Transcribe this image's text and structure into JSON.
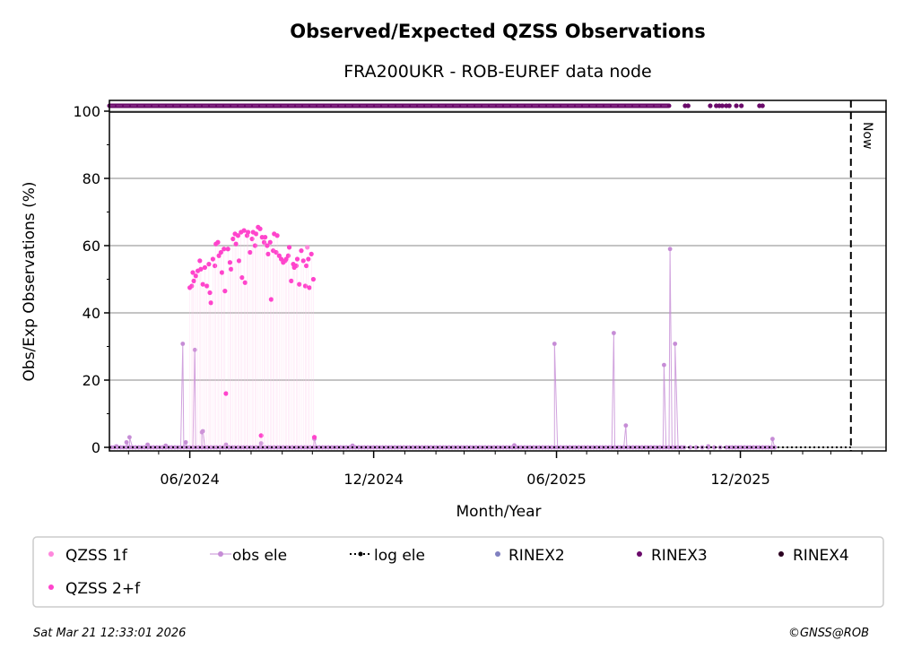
{
  "chart_data": {
    "type": "scatter",
    "title": "Observed/Expected QZSS Observations",
    "subtitle": "FRA200UKR - ROB-EUREF data node",
    "xlabel": "Month/Year",
    "ylabel": "Obs/Exp Observations (%)",
    "xlim": [
      "2024-03-13",
      "2026-04-25"
    ],
    "ylim": [
      -1,
      100
    ],
    "grid": "horizontal",
    "x_ticks": [
      {
        "date": "2024-06-01",
        "label": "06/2024"
      },
      {
        "date": "2024-12-01",
        "label": "12/2024"
      },
      {
        "date": "2025-06-01",
        "label": "06/2025"
      },
      {
        "date": "2025-12-01",
        "label": "12/2025"
      }
    ],
    "y_ticks": [
      0,
      20,
      40,
      60,
      80,
      100
    ],
    "now_marker": {
      "date": "2026-03-21",
      "label": "Now"
    },
    "rinex3_availability": {
      "continuous_from": "2024-03-13",
      "continuous_to": "2025-09-21",
      "extra_dates": [
        "2025-10-07",
        "2025-10-10",
        "2025-11-01",
        "2025-11-07",
        "2025-11-10",
        "2025-11-13",
        "2025-11-17",
        "2025-11-20",
        "2025-11-27",
        "2025-12-02",
        "2025-12-20",
        "2025-12-23"
      ]
    },
    "series": [
      {
        "name": "QZSS 2+f",
        "color": "#ff44cc",
        "points": [
          [
            "2024-06-01",
            47.5
          ],
          [
            "2024-06-03",
            48
          ],
          [
            "2024-06-04",
            52
          ],
          [
            "2024-06-05",
            49.5
          ],
          [
            "2024-06-07",
            51
          ],
          [
            "2024-06-09",
            52.5
          ],
          [
            "2024-06-11",
            55.5
          ],
          [
            "2024-06-12",
            53
          ],
          [
            "2024-06-14",
            48.5
          ],
          [
            "2024-06-16",
            53.5
          ],
          [
            "2024-06-18",
            48
          ],
          [
            "2024-06-20",
            54.5
          ],
          [
            "2024-06-21",
            46
          ],
          [
            "2024-06-22",
            43
          ],
          [
            "2024-06-24",
            56
          ],
          [
            "2024-06-26",
            54
          ],
          [
            "2024-06-27",
            60.5
          ],
          [
            "2024-06-29",
            61
          ],
          [
            "2024-06-30",
            57
          ],
          [
            "2024-07-02",
            58
          ],
          [
            "2024-07-03",
            52
          ],
          [
            "2024-07-05",
            59
          ],
          [
            "2024-07-06",
            46.5
          ],
          [
            "2024-07-07",
            16
          ],
          [
            "2024-07-09",
            59
          ],
          [
            "2024-07-11",
            55
          ],
          [
            "2024-07-12",
            53
          ],
          [
            "2024-07-14",
            62
          ],
          [
            "2024-07-16",
            63.5
          ],
          [
            "2024-07-17",
            60.5
          ],
          [
            "2024-07-19",
            63
          ],
          [
            "2024-07-20",
            55.5
          ],
          [
            "2024-07-22",
            64
          ],
          [
            "2024-07-23",
            50.5
          ],
          [
            "2024-07-25",
            64.5
          ],
          [
            "2024-07-26",
            49
          ],
          [
            "2024-07-28",
            63
          ],
          [
            "2024-07-29",
            64
          ],
          [
            "2024-07-31",
            58
          ],
          [
            "2024-08-02",
            62
          ],
          [
            "2024-08-03",
            64
          ],
          [
            "2024-08-05",
            60
          ],
          [
            "2024-08-06",
            63.5
          ],
          [
            "2024-08-08",
            65.5
          ],
          [
            "2024-08-10",
            65
          ],
          [
            "2024-08-11",
            3.5
          ],
          [
            "2024-08-12",
            62.5
          ],
          [
            "2024-08-14",
            61
          ],
          [
            "2024-08-15",
            62.5
          ],
          [
            "2024-08-17",
            60
          ],
          [
            "2024-08-18",
            57.5
          ],
          [
            "2024-08-20",
            61
          ],
          [
            "2024-08-21",
            44
          ],
          [
            "2024-08-23",
            58.5
          ],
          [
            "2024-08-24",
            63.5
          ],
          [
            "2024-08-26",
            58
          ],
          [
            "2024-08-27",
            63
          ],
          [
            "2024-08-29",
            57
          ],
          [
            "2024-08-31",
            56
          ],
          [
            "2024-09-02",
            55
          ],
          [
            "2024-09-04",
            55.5
          ],
          [
            "2024-09-05",
            56
          ],
          [
            "2024-09-07",
            57
          ],
          [
            "2024-09-08",
            59.5
          ],
          [
            "2024-09-10",
            49.5
          ],
          [
            "2024-09-12",
            54.5
          ],
          [
            "2024-09-13",
            53.5
          ],
          [
            "2024-09-15",
            54
          ],
          [
            "2024-09-16",
            56
          ],
          [
            "2024-09-18",
            48.5
          ],
          [
            "2024-09-20",
            58.5
          ],
          [
            "2024-09-22",
            55.5
          ],
          [
            "2024-09-24",
            48
          ],
          [
            "2024-09-25",
            54
          ],
          [
            "2024-09-27",
            56
          ],
          [
            "2024-09-28",
            47.5
          ],
          [
            "2024-09-30",
            57.5
          ],
          [
            "2024-10-02",
            50
          ],
          [
            "2024-10-03",
            3
          ]
        ]
      },
      {
        "name": "QZSS 1f",
        "color": "#ff88dd",
        "points": [
          [
            "2024-09-26",
            59.5
          ]
        ]
      },
      {
        "name": "obs ele",
        "color": "#c68cd6",
        "points": [
          [
            "2024-03-20",
            0.3
          ],
          [
            "2024-03-30",
            1.5
          ],
          [
            "2024-04-02",
            3
          ],
          [
            "2024-04-20",
            0.8
          ],
          [
            "2024-05-08",
            0.5
          ],
          [
            "2024-05-25",
            30.8
          ],
          [
            "2024-05-28",
            1.5
          ],
          [
            "2024-06-06",
            29
          ],
          [
            "2024-06-13",
            4.5
          ],
          [
            "2024-06-14",
            4.8
          ],
          [
            "2024-07-07",
            0.8
          ],
          [
            "2024-08-11",
            1.2
          ],
          [
            "2024-10-03",
            2.5
          ],
          [
            "2024-11-10",
            0.5
          ],
          [
            "2025-04-20",
            0.6
          ],
          [
            "2025-05-30",
            30.8
          ],
          [
            "2025-07-28",
            34
          ],
          [
            "2025-08-09",
            6.5
          ],
          [
            "2025-09-16",
            24.5
          ],
          [
            "2025-09-22",
            59
          ],
          [
            "2025-09-27",
            30.8
          ],
          [
            "2025-10-30",
            0.3
          ],
          [
            "2026-01-02",
            2.5
          ]
        ]
      },
      {
        "name": "log ele",
        "color": "#000000",
        "constant": 0,
        "from": "2024-03-13",
        "to": "2026-03-21"
      },
      {
        "name": "RINEX2",
        "color": "#8080c0",
        "points": []
      },
      {
        "name": "RINEX3",
        "color": "#6a0a6a",
        "points": []
      },
      {
        "name": "RINEX4",
        "color": "#2a0020",
        "points": []
      }
    ],
    "legend": {
      "placement": "bottom",
      "entries": [
        "QZSS 1f",
        "obs ele",
        "log ele",
        "RINEX2",
        "RINEX3",
        "RINEX4",
        "QZSS 2+f"
      ]
    }
  },
  "footer": {
    "timestamp": "Sat Mar 21 12:33:01 2026",
    "credit": "©GNSS@ROB"
  }
}
